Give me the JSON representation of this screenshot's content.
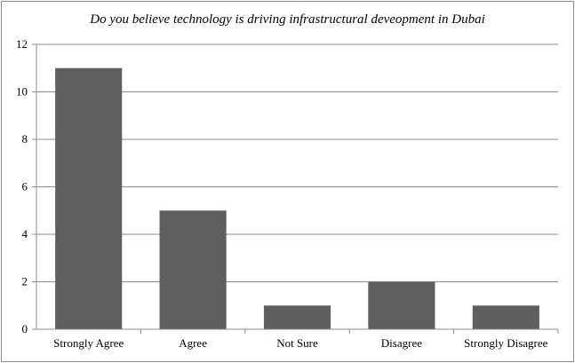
{
  "chart_data": {
    "type": "bar",
    "title": "Do you believe technology is driving infrastructural deveopment in Dubai",
    "categories": [
      "Strongly Agree",
      "Agree",
      "Not Sure",
      "Disagree",
      "Strongly Disagree"
    ],
    "values": [
      11,
      5,
      1,
      2,
      1
    ],
    "ylim": [
      0,
      12
    ],
    "yticks": [
      0,
      2,
      4,
      6,
      8,
      10,
      12
    ],
    "xlabel": "",
    "ylabel": "",
    "grid": true,
    "legend": "none",
    "colors": {
      "bar": "#5f5f5f",
      "grid": "#8c8c8c",
      "axis": "#8c8c8c"
    }
  }
}
